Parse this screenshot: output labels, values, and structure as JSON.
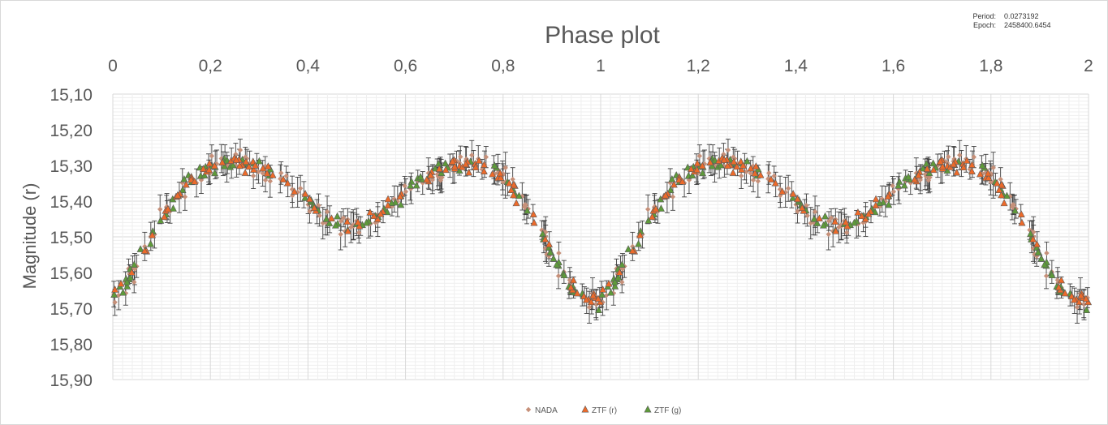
{
  "info": {
    "period_label": "Period:",
    "period_value": "0.0273192",
    "epoch_label": "Epoch:",
    "epoch_value": "2458400.6454"
  },
  "chart_data": {
    "type": "scatter",
    "title": "Phase plot",
    "xlabel": "",
    "ylabel": "Magnitude (r)",
    "xlim": [
      0,
      2
    ],
    "ylim": [
      15.1,
      15.9
    ],
    "y_inverted": true,
    "x_axis_position": "top",
    "grid": true,
    "x_ticks": [
      "0",
      "0,2",
      "0,4",
      "0,6",
      "0,8",
      "1",
      "1,2",
      "1,4",
      "1,6",
      "1,8",
      "2"
    ],
    "y_ticks": [
      "15,10",
      "15,20",
      "15,30",
      "15,40",
      "15,50",
      "15,60",
      "15,70",
      "15,80",
      "15,90"
    ],
    "legend_position": "bottom",
    "light_curve": {
      "phase": [
        0,
        0.05,
        0.1,
        0.15,
        0.2,
        0.25,
        0.3,
        0.35,
        0.4,
        0.45,
        0.5,
        0.55,
        0.6,
        0.65,
        0.7,
        0.75,
        0.8,
        0.85,
        0.9,
        0.95,
        1.0
      ],
      "magnitude": [
        15.68,
        15.58,
        15.45,
        15.35,
        15.3,
        15.29,
        15.3,
        15.34,
        15.4,
        15.46,
        15.47,
        15.43,
        15.38,
        15.33,
        15.3,
        15.3,
        15.33,
        15.42,
        15.55,
        15.66,
        15.68
      ]
    },
    "series": [
      {
        "name": "NADA",
        "color": "#c69079",
        "marker": "diamond",
        "error_bars": true
      },
      {
        "name": "ZTF (r)",
        "color": "#ed6a2a",
        "marker": "triangle",
        "error_bars": false
      },
      {
        "name": "ZTF (g)",
        "color": "#5e9a3a",
        "marker": "triangle",
        "error_bars": false
      }
    ]
  }
}
